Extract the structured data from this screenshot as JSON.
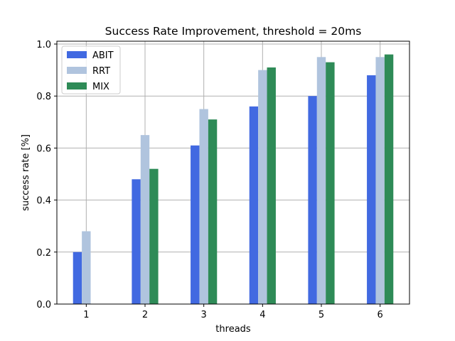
{
  "chart_data": {
    "type": "bar",
    "title": "Success Rate Improvement,  threshold = 20ms",
    "xlabel": "threads",
    "ylabel": "success rate [%]",
    "categories": [
      "1",
      "2",
      "3",
      "4",
      "5",
      "6"
    ],
    "ylim": [
      0,
      1.0
    ],
    "yticks": [
      "0.0",
      "0.2",
      "0.4",
      "0.6",
      "0.8",
      "1.0"
    ],
    "grid": true,
    "legend_position": "top-left",
    "series": [
      {
        "name": "ABIT",
        "color": "#4169E1",
        "values": [
          0.2,
          0.48,
          0.61,
          0.76,
          0.8,
          0.88
        ]
      },
      {
        "name": "RRT",
        "color": "#B0C4DE",
        "values": [
          0.28,
          0.65,
          0.75,
          0.9,
          0.95,
          0.95
        ]
      },
      {
        "name": "MIX",
        "color": "#2E8B57",
        "values": [
          null,
          0.52,
          0.71,
          0.91,
          0.93,
          0.96
        ]
      }
    ]
  }
}
